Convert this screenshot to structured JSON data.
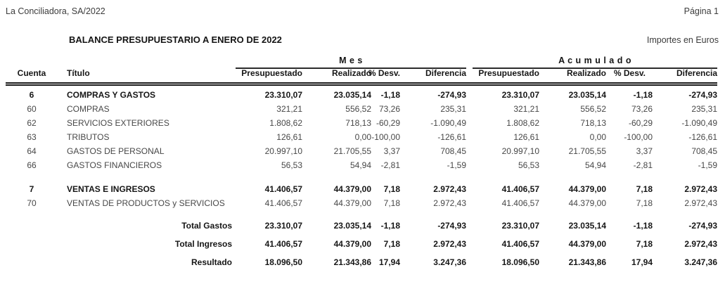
{
  "page": {
    "company": "La Conciliadora, SA/2022",
    "page_label": "Página 1",
    "title": "BALANCE PRESUPUESTARIO A ENERO DE 2022",
    "currency_note": "Importes en Euros"
  },
  "table": {
    "group_headers": {
      "mes": "M e s",
      "acumulado": "A c u m u l a d o"
    },
    "columns": {
      "cuenta": "Cuenta",
      "titulo": "Título",
      "presupuestado": "Presupuestado",
      "realizado": "Realizado",
      "desv": "% Desv.",
      "diferencia": "Diferencia"
    },
    "rows": [
      {
        "cuenta": "6",
        "titulo": "COMPRAS Y GASTOS",
        "mes": [
          "23.310,07",
          "23.035,14",
          "-1,18",
          "-274,93"
        ],
        "acum": [
          "23.310,07",
          "23.035,14",
          "-1,18",
          "-274,93"
        ]
      },
      {
        "cuenta": "60",
        "titulo": "COMPRAS",
        "mes": [
          "321,21",
          "556,52",
          "73,26",
          "235,31"
        ],
        "acum": [
          "321,21",
          "556,52",
          "73,26",
          "235,31"
        ]
      },
      {
        "cuenta": "62",
        "titulo": "SERVICIOS EXTERIORES",
        "mes": [
          "1.808,62",
          "718,13",
          "-60,29",
          "-1.090,49"
        ],
        "acum": [
          "1.808,62",
          "718,13",
          "-60,29",
          "-1.090,49"
        ]
      },
      {
        "cuenta": "63",
        "titulo": "TRIBUTOS",
        "mes": [
          "126,61",
          "0,00",
          "-100,00",
          "-126,61"
        ],
        "acum": [
          "126,61",
          "0,00",
          "-100,00",
          "-126,61"
        ]
      },
      {
        "cuenta": "64",
        "titulo": "GASTOS DE PERSONAL",
        "mes": [
          "20.997,10",
          "21.705,55",
          "3,37",
          "708,45"
        ],
        "acum": [
          "20.997,10",
          "21.705,55",
          "3,37",
          "708,45"
        ]
      },
      {
        "cuenta": "66",
        "titulo": "GASTOS FINANCIEROS",
        "mes": [
          "56,53",
          "54,94",
          "-2,81",
          "-1,59"
        ],
        "acum": [
          "56,53",
          "54,94",
          "-2,81",
          "-1,59"
        ]
      },
      {
        "cuenta": "7",
        "titulo": "VENTAS E INGRESOS",
        "mes": [
          "41.406,57",
          "44.379,00",
          "7,18",
          "2.972,43"
        ],
        "acum": [
          "41.406,57",
          "44.379,00",
          "7,18",
          "2.972,43"
        ]
      },
      {
        "cuenta": "70",
        "titulo": "VENTAS DE PRODUCTOS y SERVICIOS",
        "mes": [
          "41.406,57",
          "44.379,00",
          "7,18",
          "2.972,43"
        ],
        "acum": [
          "41.406,57",
          "44.379,00",
          "7,18",
          "2.972,43"
        ]
      }
    ],
    "totals": [
      {
        "label": "Total Gastos",
        "mes": [
          "23.310,07",
          "23.035,14",
          "-1,18",
          "-274,93"
        ],
        "acum": [
          "23.310,07",
          "23.035,14",
          "-1,18",
          "-274,93"
        ]
      },
      {
        "label": "Total Ingresos",
        "mes": [
          "41.406,57",
          "44.379,00",
          "7,18",
          "2.972,43"
        ],
        "acum": [
          "41.406,57",
          "44.379,00",
          "7,18",
          "2.972,43"
        ]
      },
      {
        "label": "Resultado",
        "mes": [
          "18.096,50",
          "21.343,86",
          "17,94",
          "3.247,36"
        ],
        "acum": [
          "18.096,50",
          "21.343,86",
          "17,94",
          "3.247,36"
        ]
      }
    ]
  }
}
